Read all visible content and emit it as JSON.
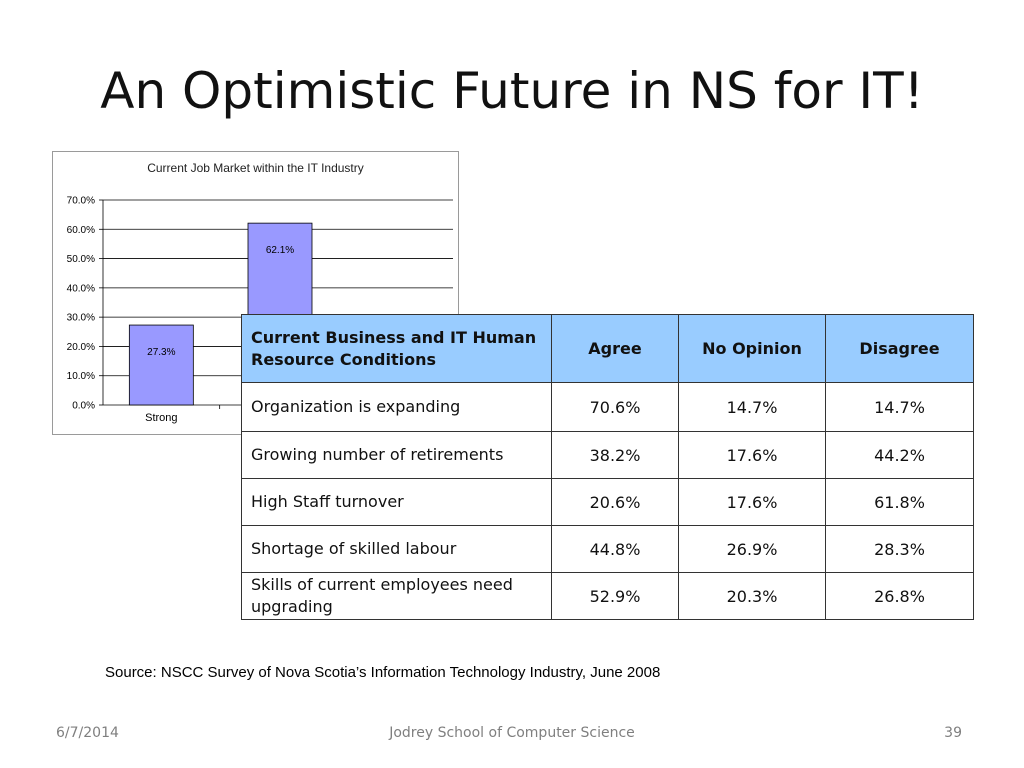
{
  "slide": {
    "title": "An Optimistic Future in NS for IT!",
    "source": "Source: NSCC Survey of Nova Scotia’s Information Technology Industry, June 2008"
  },
  "chart_data": {
    "type": "bar",
    "title": "Current Job Market within the IT Industry",
    "categories": [
      "Strong",
      ""
    ],
    "series": [
      {
        "values": [
          27.3,
          62.1
        ]
      }
    ],
    "data_labels": [
      "27.3%",
      "62.1%"
    ],
    "yticks": [
      "0.0%",
      "10.0%",
      "20.0%",
      "30.0%",
      "40.0%",
      "50.0%",
      "60.0%",
      "70.0%"
    ],
    "ylim": [
      0,
      70
    ],
    "bar_color": "#9999ff",
    "grid": true
  },
  "table": {
    "headers": [
      "Current Business and IT Human Resource Conditions",
      "Agree",
      "No Opinion",
      "Disagree"
    ],
    "rows": [
      [
        "Organization is expanding",
        "70.6%",
        "14.7%",
        "14.7%"
      ],
      [
        "Growing number of retirements",
        "38.2%",
        "17.6%",
        "44.2%"
      ],
      [
        "High Staff turnover",
        "20.6%",
        "17.6%",
        "61.8%"
      ],
      [
        "Shortage of skilled labour",
        "44.8%",
        "26.9%",
        "28.3%"
      ],
      [
        "Skills of current employees need upgrading",
        "52.9%",
        "20.3%",
        "26.8%"
      ]
    ],
    "header_color": "#99ccff"
  },
  "footer": {
    "date": "6/7/2014",
    "center": "Jodrey School of Computer Science",
    "page": "39"
  }
}
